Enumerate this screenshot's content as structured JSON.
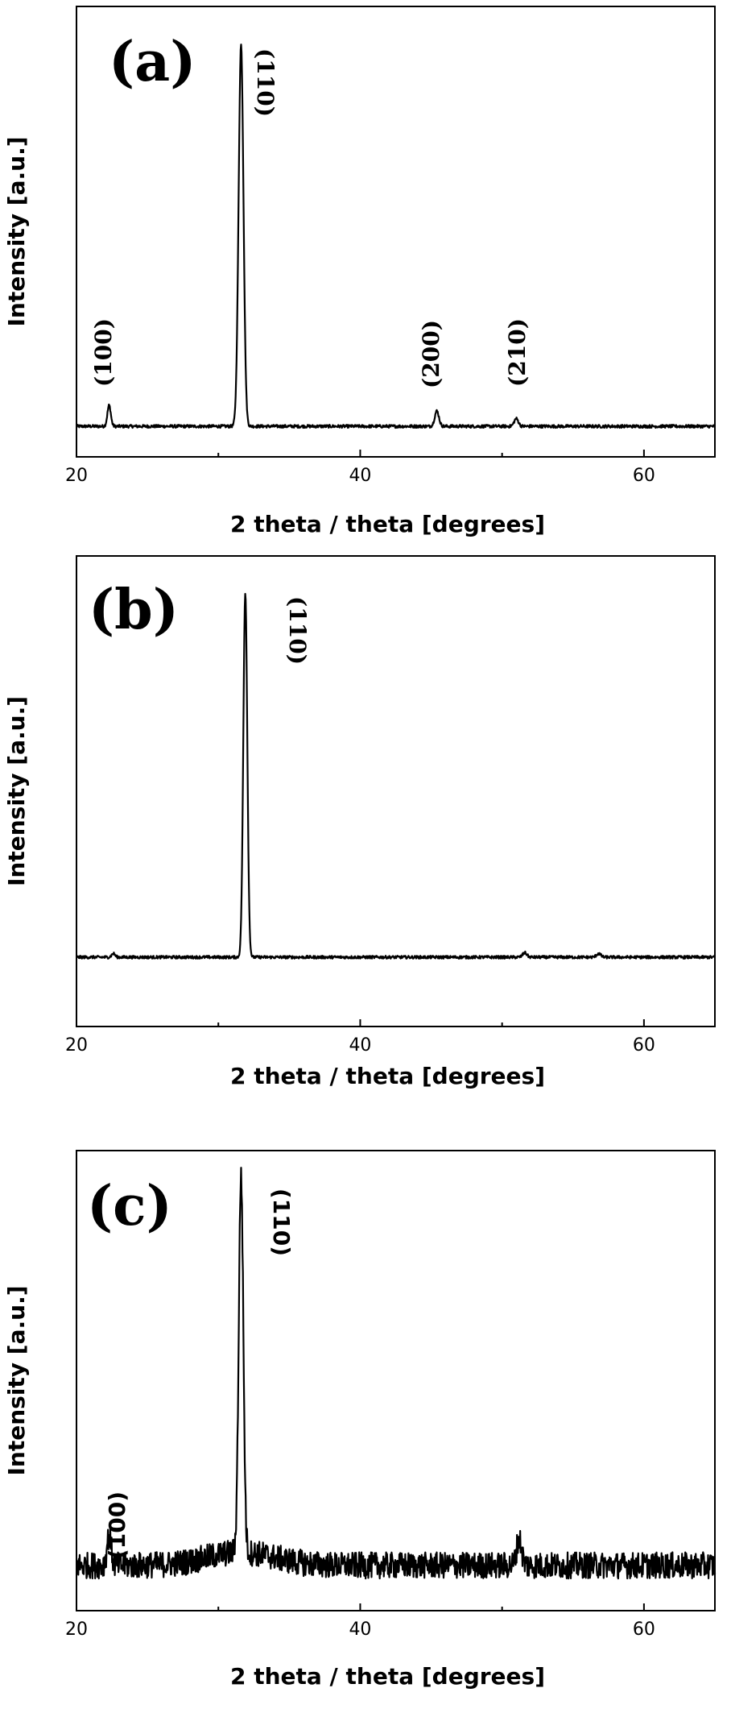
{
  "chart_data": [
    {
      "type": "line",
      "panel_label": "(a)",
      "xlabel": "2 theta / theta [degrees]",
      "ylabel": "Intensity [a.u.]",
      "xlim": [
        20,
        65
      ],
      "xticks": [
        20,
        40,
        60
      ],
      "minor_xticks": [
        30,
        50
      ],
      "y_tick_labels": false,
      "baseline": 0.0,
      "noise": 0.004,
      "peaks": [
        {
          "label": "(100)",
          "x": 22.3,
          "height": 0.055,
          "width": 0.12
        },
        {
          "label": "(110)",
          "x": 31.6,
          "height": 1.0,
          "width": 0.17
        },
        {
          "label": "(200)",
          "x": 45.4,
          "height": 0.04,
          "width": 0.15
        },
        {
          "label": "(210)",
          "x": 51.0,
          "height": 0.02,
          "width": 0.15
        }
      ],
      "ylim": [
        -0.08,
        1.1
      ],
      "label_font": "serif"
    },
    {
      "type": "line",
      "panel_label": "(b)",
      "xlabel": "2 theta / theta [degrees]",
      "ylabel": "Intensity [a.u.]",
      "xlim": [
        20,
        65
      ],
      "xticks": [
        20,
        40,
        60
      ],
      "minor_xticks": [
        30,
        50
      ],
      "y_tick_labels": false,
      "baseline": 0.0,
      "noise": 0.004,
      "peaks": [
        {
          "label": "(110)",
          "x": 31.9,
          "height": 1.0,
          "width": 0.14
        },
        {
          "label": "",
          "x": 22.6,
          "height": 0.01,
          "width": 0.12
        },
        {
          "label": "",
          "x": 51.6,
          "height": 0.012,
          "width": 0.15
        },
        {
          "label": "",
          "x": 56.8,
          "height": 0.01,
          "width": 0.15
        }
      ],
      "ylim": [
        -0.19,
        1.1
      ],
      "label_font": "serif"
    },
    {
      "type": "line",
      "panel_label": "(c)",
      "xlabel": "2 theta / theta [degrees]",
      "ylabel": "Intensity [a.u.]",
      "xlim": [
        20,
        65
      ],
      "xticks": [
        20,
        40,
        60
      ],
      "minor_xticks": [
        30,
        50
      ],
      "y_tick_labels": false,
      "baseline": 0.0,
      "noise": 0.035,
      "peaks": [
        {
          "label": "(100)",
          "x": 22.3,
          "height": 0.08,
          "width": 0.15
        },
        {
          "label": "(110)",
          "x": 31.6,
          "height": 1.0,
          "width": 0.16
        },
        {
          "label": "",
          "x": 51.2,
          "height": 0.07,
          "width": 0.18
        }
      ],
      "ylim": [
        -0.12,
        1.1
      ],
      "label_font": "sans"
    }
  ]
}
